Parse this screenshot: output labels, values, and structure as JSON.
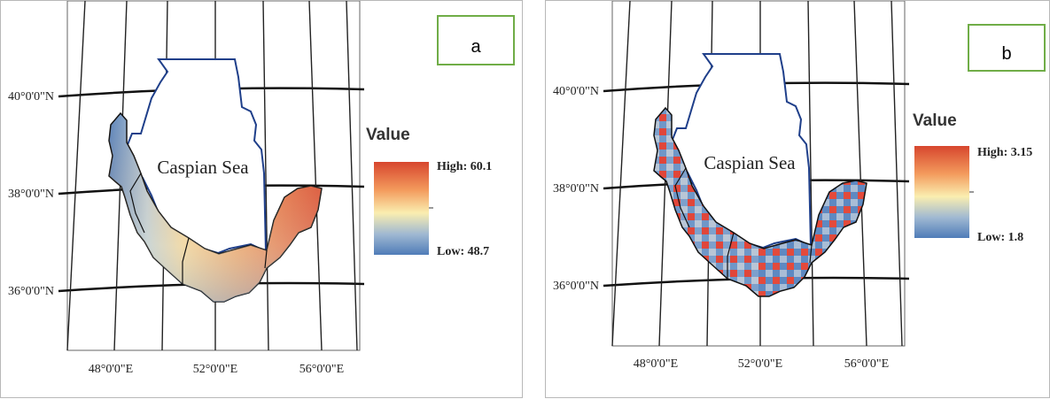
{
  "panels": [
    {
      "id": "a",
      "label": "a",
      "sea_label": "Caspian Sea",
      "lat_labels": [
        "40°0'0\"N",
        "38°0'0\"N",
        "36°0'0\"N"
      ],
      "lon_labels": [
        "48°0'0\"E",
        "52°0'0\"E",
        "56°0'0\"E"
      ],
      "legend": {
        "title": "Value",
        "high_label": "High: 60.1",
        "low_label": "Low: 48.7",
        "high_value": 60.1,
        "low_value": 48.7,
        "ramp_colors": [
          "#d7462e",
          "#f39a5c",
          "#faeeb0",
          "#9fb8d2",
          "#4f7cb8"
        ]
      },
      "label_box_color": "#70ad47"
    },
    {
      "id": "b",
      "label": "b",
      "sea_label": "Caspian Sea",
      "lat_labels": [
        "40°0'0\"N",
        "38°0'0\"N",
        "36°0'0\"N"
      ],
      "lon_labels": [
        "48°0'0\"E",
        "52°0'0\"E",
        "56°0'0\"E"
      ],
      "legend": {
        "title": "Value",
        "high_label": "High: 3.15",
        "low_label": "Low: 1.8",
        "high_value": 3.15,
        "low_value": 1.8,
        "ramp_colors": [
          "#d7462e",
          "#f39a5c",
          "#faeeb0",
          "#9fb8d2",
          "#4f7cb8"
        ]
      },
      "label_box_color": "#70ad47"
    }
  ]
}
